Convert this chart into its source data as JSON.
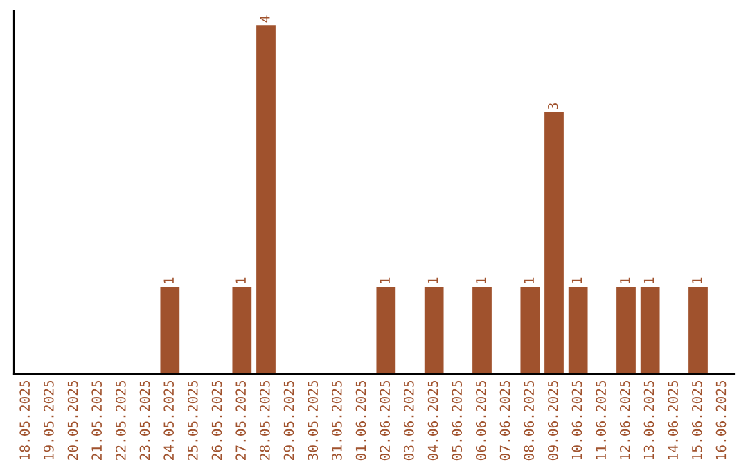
{
  "chart_data": {
    "type": "bar",
    "categories": [
      "18.05.2025",
      "19.05.2025",
      "20.05.2025",
      "21.05.2025",
      "22.05.2025",
      "23.05.2025",
      "24.05.2025",
      "25.05.2025",
      "26.05.2025",
      "27.05.2025",
      "28.05.2025",
      "29.05.2025",
      "30.05.2025",
      "31.05.2025",
      "01.06.2025",
      "02.06.2025",
      "03.06.2025",
      "04.06.2025",
      "05.06.2025",
      "06.06.2025",
      "07.06.2025",
      "08.06.2025",
      "09.06.2025",
      "10.06.2025",
      "11.06.2025",
      "12.06.2025",
      "13.06.2025",
      "14.06.2025",
      "15.06.2025",
      "16.06.2025"
    ],
    "values": [
      0,
      0,
      0,
      0,
      0,
      0,
      1,
      0,
      0,
      1,
      4,
      0,
      0,
      0,
      0,
      1,
      0,
      1,
      0,
      1,
      0,
      1,
      3,
      1,
      0,
      1,
      1,
      0,
      1,
      0
    ],
    "value_labels": [
      null,
      null,
      null,
      null,
      null,
      null,
      "1",
      null,
      null,
      "1",
      "4",
      null,
      null,
      null,
      null,
      "1",
      null,
      "1",
      null,
      "1",
      null,
      "1",
      "3",
      "1",
      null,
      "1",
      "1",
      null,
      "1",
      null
    ],
    "color": "#a0522d",
    "tick_labels": "x",
    "grid": false,
    "legend": false
  }
}
